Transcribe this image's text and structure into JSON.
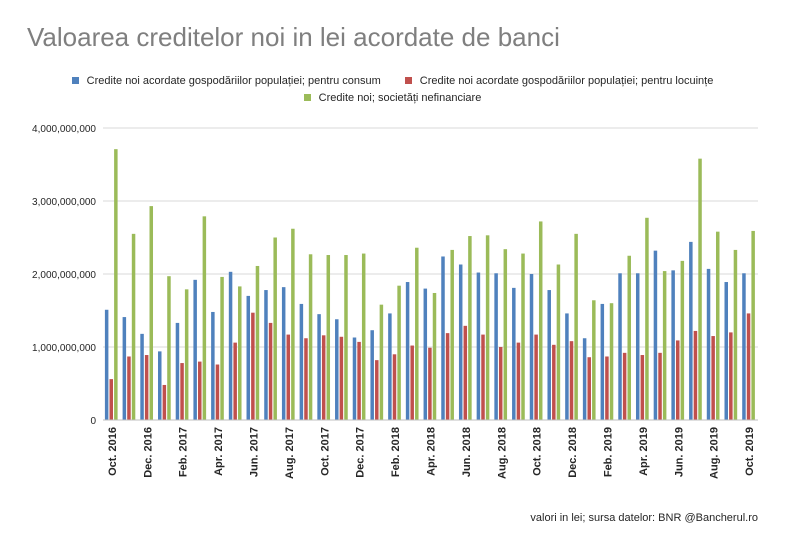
{
  "title": "Valoarea creditelor noi in lei acordate de banci",
  "source_note": "valori in lei; sursa datelor: BNR @Bancherul.ro",
  "chart_data": {
    "type": "bar",
    "title": "Valoarea creditelor noi in lei acordate de banci",
    "xlabel": "",
    "ylabel": "",
    "ylim": [
      0,
      4000000000
    ],
    "yticks": [
      0,
      1000000000,
      2000000000,
      3000000000,
      4000000000
    ],
    "ytick_labels": [
      "0",
      "1,000,000,000",
      "2,000,000,000",
      "3,000,000,000",
      "4,000,000,000"
    ],
    "grid": true,
    "legend_position": "top",
    "categories": [
      "Oct. 2016",
      "Nov. 2016",
      "Dec. 2016",
      "Jan. 2017",
      "Feb. 2017",
      "Mar. 2017",
      "Apr. 2017",
      "May 2017",
      "Jun. 2017",
      "Jul. 2017",
      "Aug. 2017",
      "Sep. 2017",
      "Oct. 2017",
      "Nov. 2017",
      "Dec. 2017",
      "Jan. 2018",
      "Feb. 2018",
      "Mar. 2018",
      "Apr. 2018",
      "May 2018",
      "Jun. 2018",
      "Jul. 2018",
      "Aug. 2018",
      "Sep. 2018",
      "Oct. 2018",
      "Nov. 2018",
      "Dec. 2018",
      "Jan. 2019",
      "Feb. 2019",
      "Mar. 2019",
      "Apr. 2019",
      "May 2019",
      "Jun. 2019",
      "Jul. 2019",
      "Aug. 2019",
      "Sep. 2019",
      "Oct. 2019"
    ],
    "tick_labels": [
      "Oct. 2016",
      "",
      "Dec. 2016",
      "",
      "Feb. 2017",
      "",
      "Apr. 2017",
      "",
      "Jun. 2017",
      "",
      "Aug. 2017",
      "",
      "Oct. 2017",
      "",
      "Dec. 2017",
      "",
      "Feb. 2018",
      "",
      "Apr. 2018",
      "",
      "Jun. 2018",
      "",
      "Aug. 2018",
      "",
      "Oct. 2018",
      "",
      "Dec. 2018",
      "",
      "Feb. 2019",
      "",
      "Apr. 2019",
      "",
      "Jun. 2019",
      "",
      "Aug. 2019",
      "",
      "Oct. 2019"
    ],
    "series": [
      {
        "name": "Credite noi acordate gospodăriilor populației; pentru consum",
        "color": "#4f81bd",
        "values": [
          1510000000,
          1410000000,
          1180000000,
          940000000,
          1330000000,
          1920000000,
          1480000000,
          2030000000,
          1700000000,
          1780000000,
          1820000000,
          1590000000,
          1450000000,
          1380000000,
          1130000000,
          1230000000,
          1460000000,
          1890000000,
          1800000000,
          2240000000,
          2130000000,
          2020000000,
          2010000000,
          1810000000,
          2000000000,
          1780000000,
          1460000000,
          1120000000,
          1590000000,
          2010000000,
          2010000000,
          2320000000,
          2050000000,
          2440000000,
          2070000000,
          1890000000,
          2010000000
        ]
      },
      {
        "name": "Credite noi acordate gospodăriilor populației; pentru locuințe",
        "color": "#c0504d",
        "values": [
          560000000,
          870000000,
          890000000,
          480000000,
          780000000,
          800000000,
          760000000,
          1060000000,
          1470000000,
          1330000000,
          1170000000,
          1120000000,
          1160000000,
          1140000000,
          1070000000,
          820000000,
          900000000,
          1020000000,
          990000000,
          1190000000,
          1290000000,
          1170000000,
          1000000000,
          1060000000,
          1170000000,
          1030000000,
          1080000000,
          860000000,
          870000000,
          920000000,
          890000000,
          920000000,
          1090000000,
          1220000000,
          1150000000,
          1200000000,
          1460000000
        ]
      },
      {
        "name": "Credite noi; societăți nefinanciare",
        "color": "#9bbb59",
        "values": [
          3710000000,
          2550000000,
          2930000000,
          1970000000,
          1790000000,
          2790000000,
          1960000000,
          1830000000,
          2110000000,
          2500000000,
          2620000000,
          2270000000,
          2260000000,
          2260000000,
          2280000000,
          1580000000,
          1840000000,
          2360000000,
          1740000000,
          2330000000,
          2520000000,
          2530000000,
          2340000000,
          2280000000,
          2720000000,
          2130000000,
          2550000000,
          1640000000,
          1600000000,
          2250000000,
          2770000000,
          2040000000,
          2180000000,
          3580000000,
          2580000000,
          2330000000,
          2590000000
        ]
      }
    ]
  }
}
